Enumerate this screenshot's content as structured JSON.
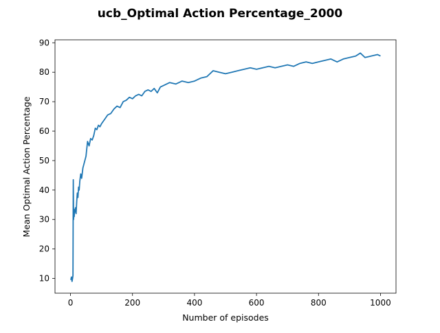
{
  "chart_data": {
    "type": "line",
    "title": "ucb_Optimal Action Percentage_2000",
    "xlabel": "Number of episodes",
    "ylabel": "Mean Optimal Action Percentage",
    "xlim": [
      -50,
      1050
    ],
    "ylim": [
      5,
      91
    ],
    "xticks": [
      0,
      200,
      400,
      600,
      800,
      1000
    ],
    "yticks": [
      10,
      20,
      30,
      40,
      50,
      60,
      70,
      80,
      90
    ],
    "grid": false,
    "legend": "none",
    "series": [
      {
        "color": "#1f77b4",
        "x": [
          1,
          3,
          5,
          7,
          8,
          9,
          10,
          11,
          12,
          13,
          14,
          16,
          18,
          20,
          22,
          24,
          26,
          28,
          30,
          33,
          36,
          40,
          45,
          50,
          55,
          60,
          65,
          70,
          75,
          80,
          85,
          90,
          95,
          100,
          110,
          120,
          130,
          140,
          150,
          160,
          170,
          180,
          190,
          200,
          210,
          220,
          230,
          240,
          250,
          260,
          270,
          280,
          290,
          300,
          320,
          340,
          360,
          380,
          400,
          420,
          440,
          460,
          480,
          500,
          520,
          540,
          560,
          580,
          600,
          620,
          640,
          660,
          680,
          700,
          720,
          740,
          760,
          780,
          800,
          820,
          840,
          860,
          880,
          900,
          920,
          935,
          950,
          970,
          990,
          1000
        ],
        "y": [
          9.5,
          10.5,
          9.0,
          10.2,
          11.0,
          43.5,
          30.0,
          33.5,
          31.0,
          33.0,
          32.5,
          34.0,
          32.0,
          36.0,
          39.0,
          37.5,
          41.0,
          40.0,
          43.0,
          45.5,
          44.0,
          47.5,
          49.5,
          51.5,
          56.5,
          55.0,
          57.5,
          57.0,
          58.5,
          61.0,
          60.5,
          62.0,
          61.5,
          62.5,
          64.0,
          65.5,
          66.0,
          67.5,
          68.5,
          68.0,
          70.0,
          70.5,
          71.5,
          71.0,
          72.0,
          72.5,
          72.0,
          73.5,
          74.0,
          73.5,
          74.5,
          73.0,
          75.0,
          75.5,
          76.5,
          76.0,
          77.0,
          76.5,
          77.0,
          78.0,
          78.5,
          80.5,
          80.0,
          79.5,
          80.0,
          80.5,
          81.0,
          81.5,
          81.0,
          81.5,
          82.0,
          81.5,
          82.0,
          82.5,
          82.0,
          83.0,
          83.5,
          83.0,
          83.5,
          84.0,
          84.5,
          83.5,
          84.5,
          85.0,
          85.5,
          86.5,
          85.0,
          85.5,
          86.0,
          85.5
        ]
      }
    ]
  }
}
